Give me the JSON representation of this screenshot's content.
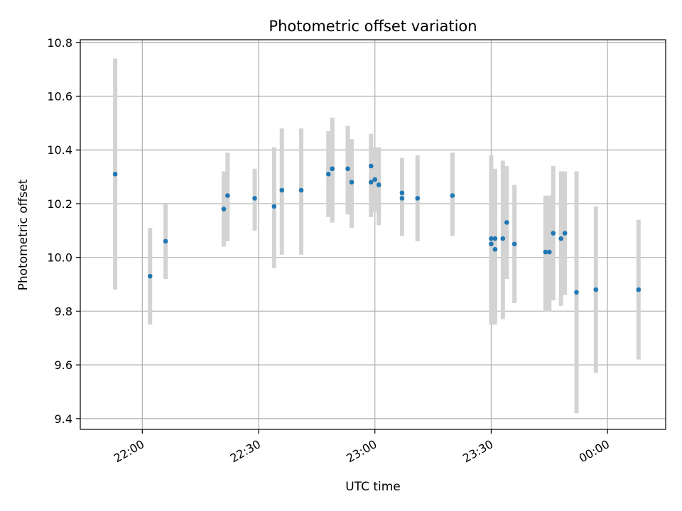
{
  "chart_data": {
    "type": "scatter",
    "title": "Photometric offset variation",
    "xlabel": "UTC time",
    "ylabel": "Photometric offset",
    "x_axis": {
      "start": "21:44",
      "end": "00:15",
      "ticks": [
        "22:00",
        "22:30",
        "23:00",
        "23:30",
        "00:00"
      ]
    },
    "y_axis": {
      "range": [
        9.36,
        10.81
      ],
      "ticks": [
        "9.4",
        "9.6",
        "9.8",
        "10.0",
        "10.2",
        "10.4",
        "10.6",
        "10.8"
      ]
    },
    "grid": true,
    "colors": {
      "point": "#1f77b4",
      "errorbar": "#d3d3d3",
      "grid": "#b0b0b0"
    },
    "points": [
      {
        "x": "21:53",
        "y": 10.31,
        "lo": 9.88,
        "hi": 10.74
      },
      {
        "x": "22:02",
        "y": 9.93,
        "lo": 9.75,
        "hi": 10.11
      },
      {
        "x": "22:06",
        "y": 10.06,
        "lo": 9.92,
        "hi": 10.2
      },
      {
        "x": "22:21",
        "y": 10.18,
        "lo": 10.04,
        "hi": 10.32
      },
      {
        "x": "22:22",
        "y": 10.23,
        "lo": 10.06,
        "hi": 10.39
      },
      {
        "x": "22:29",
        "y": 10.22,
        "lo": 10.1,
        "hi": 10.33
      },
      {
        "x": "22:34",
        "y": 10.19,
        "lo": 9.96,
        "hi": 10.41
      },
      {
        "x": "22:36",
        "y": 10.25,
        "lo": 10.01,
        "hi": 10.48
      },
      {
        "x": "22:41",
        "y": 10.25,
        "lo": 10.01,
        "hi": 10.48
      },
      {
        "x": "22:48",
        "y": 10.31,
        "lo": 10.15,
        "hi": 10.47
      },
      {
        "x": "22:49",
        "y": 10.33,
        "lo": 10.13,
        "hi": 10.52
      },
      {
        "x": "22:49",
        "y": 10.33,
        "lo": 10.15,
        "hi": 10.51
      },
      {
        "x": "22:53",
        "y": 10.33,
        "lo": 10.16,
        "hi": 10.49
      },
      {
        "x": "22:54",
        "y": 10.28,
        "lo": 10.11,
        "hi": 10.44
      },
      {
        "x": "22:59",
        "y": 10.34,
        "lo": 10.22,
        "hi": 10.46
      },
      {
        "x": "22:59",
        "y": 10.28,
        "lo": 10.15,
        "hi": 10.41
      },
      {
        "x": "23:00",
        "y": 10.29,
        "lo": 10.17,
        "hi": 10.41
      },
      {
        "x": "23:01",
        "y": 10.27,
        "lo": 10.12,
        "hi": 10.41
      },
      {
        "x": "23:07",
        "y": 10.22,
        "lo": 10.08,
        "hi": 10.37
      },
      {
        "x": "23:07",
        "y": 10.24,
        "lo": 10.1,
        "hi": 10.37
      },
      {
        "x": "23:11",
        "y": 10.22,
        "lo": 10.06,
        "hi": 10.38
      },
      {
        "x": "23:20",
        "y": 10.23,
        "lo": 10.08,
        "hi": 10.39
      },
      {
        "x": "23:30",
        "y": 10.07,
        "lo": 9.76,
        "hi": 10.38
      },
      {
        "x": "23:30",
        "y": 10.05,
        "lo": 9.75,
        "hi": 10.33
      },
      {
        "x": "23:31",
        "y": 10.07,
        "lo": 9.75,
        "hi": 10.31
      },
      {
        "x": "23:31",
        "y": 10.03,
        "lo": 9.76,
        "hi": 10.33
      },
      {
        "x": "23:33",
        "y": 10.07,
        "lo": 9.77,
        "hi": 10.36
      },
      {
        "x": "23:34",
        "y": 10.13,
        "lo": 9.92,
        "hi": 10.34
      },
      {
        "x": "23:36",
        "y": 10.05,
        "lo": 9.83,
        "hi": 10.27
      },
      {
        "x": "23:44",
        "y": 10.02,
        "lo": 9.8,
        "hi": 10.23
      },
      {
        "x": "23:45",
        "y": 10.02,
        "lo": 9.8,
        "hi": 10.23
      },
      {
        "x": "23:46",
        "y": 10.09,
        "lo": 9.84,
        "hi": 10.34
      },
      {
        "x": "23:48",
        "y": 10.07,
        "lo": 9.82,
        "hi": 10.32
      },
      {
        "x": "23:49",
        "y": 10.09,
        "lo": 9.86,
        "hi": 10.32
      },
      {
        "x": "23:52",
        "y": 9.87,
        "lo": 9.42,
        "hi": 10.32
      },
      {
        "x": "23:57",
        "y": 9.88,
        "lo": 9.57,
        "hi": 10.19
      },
      {
        "x": "00:08",
        "y": 9.88,
        "lo": 9.62,
        "hi": 10.14
      }
    ]
  }
}
